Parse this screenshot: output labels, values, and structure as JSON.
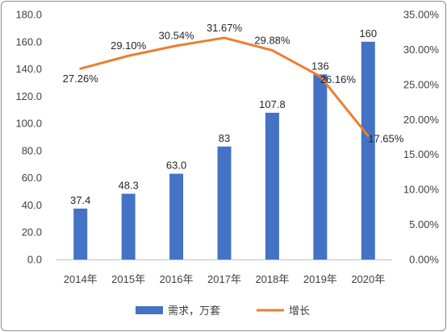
{
  "chart_data": {
    "type": "bar+line",
    "categories": [
      "2014年",
      "2015年",
      "2016年",
      "2017年",
      "2018年",
      "2019年",
      "2020年"
    ],
    "series": [
      {
        "name": "需求，万套",
        "type": "bar",
        "axis": "left",
        "color": "#4472C4",
        "values": [
          37.4,
          48.3,
          63.0,
          83,
          107.8,
          136,
          160
        ],
        "labels": [
          "37.4",
          "48.3",
          "63.0",
          "83",
          "107.8",
          "136",
          "160"
        ]
      },
      {
        "name": "增长",
        "type": "line",
        "axis": "right",
        "color": "#ED7D31",
        "values": [
          27.26,
          29.1,
          30.54,
          31.67,
          29.88,
          26.16,
          17.65
        ],
        "labels": [
          "27.26%",
          "29.10%",
          "30.54%",
          "31.67%",
          "29.88%",
          "26.16%",
          "17.65%"
        ]
      }
    ],
    "y_left": {
      "range": [
        0,
        180
      ],
      "ticks": [
        "0.0",
        "20.0",
        "40.0",
        "60.0",
        "80.0",
        "100.0",
        "120.0",
        "140.0",
        "160.0",
        "180.0"
      ]
    },
    "y_right": {
      "range": [
        0,
        35
      ],
      "ticks": [
        "0.00%",
        "5.00%",
        "10.00%",
        "15.00%",
        "20.00%",
        "25.00%",
        "30.00%",
        "35.00%"
      ]
    },
    "grid": false,
    "legend": "bottom"
  }
}
